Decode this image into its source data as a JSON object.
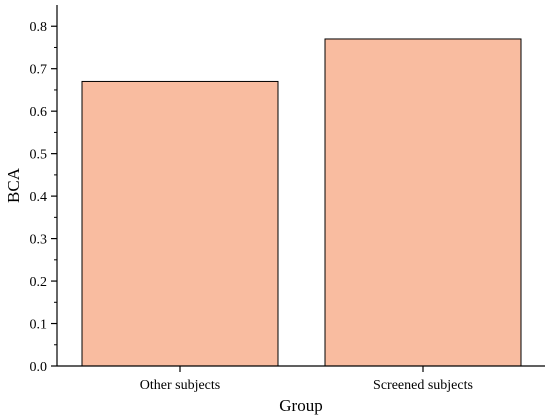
{
  "chart_data": {
    "type": "bar",
    "title": "",
    "xlabel": "Group",
    "ylabel": "BCA",
    "categories": [
      "Other subjects",
      "Screened subjects"
    ],
    "values": [
      0.67,
      0.77
    ],
    "ylim": [
      0,
      0.85
    ],
    "yticks": [
      "0.0",
      "0.1",
      "0.2",
      "0.3",
      "0.4",
      "0.5",
      "0.6",
      "0.7",
      "0.8"
    ],
    "bar_color": "#f9bca0",
    "bar_edge_color": "#000000",
    "grid": false,
    "legend": "none"
  }
}
